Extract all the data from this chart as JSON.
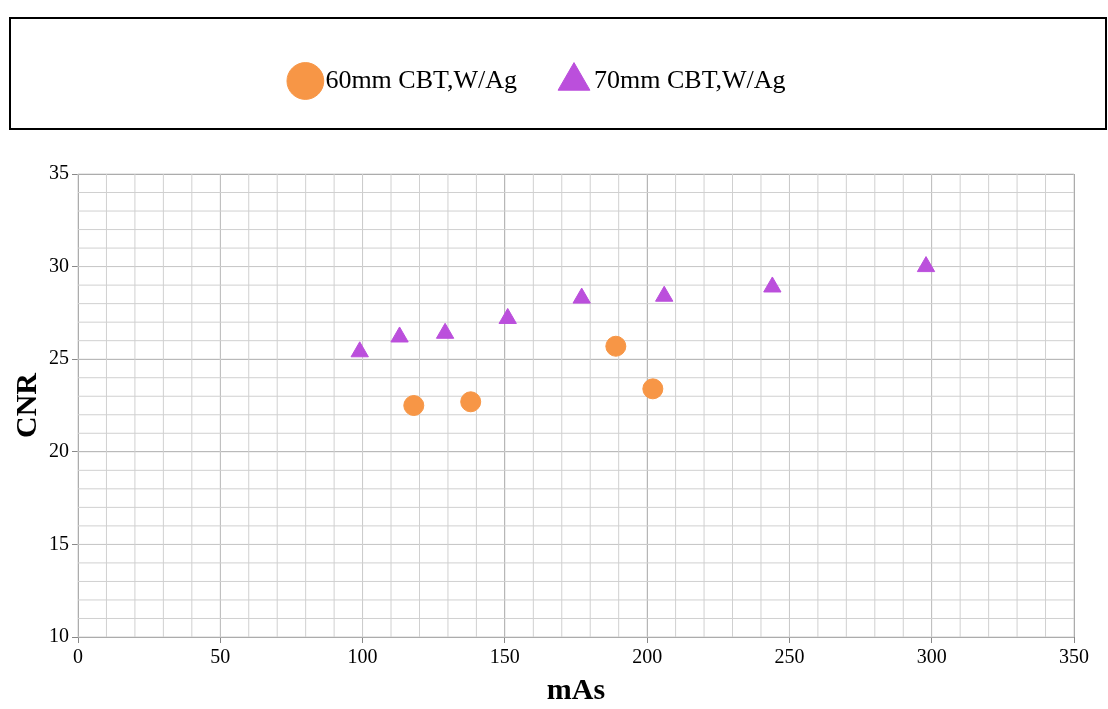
{
  "chart_data": {
    "type": "scatter",
    "xlabel": "mAs",
    "ylabel": "CNR",
    "xlim": [
      0,
      350
    ],
    "xticks": [
      0,
      50,
      100,
      150,
      200,
      250,
      300,
      350
    ],
    "ylim": [
      10,
      35
    ],
    "yticks": [
      10,
      15,
      20,
      25,
      30,
      35
    ],
    "grid": true,
    "legend": "top",
    "series": [
      {
        "name": "60mm CBT,W/Ag",
        "color": "#f79646",
        "marker": "circle",
        "x": [
          118,
          138,
          189,
          202
        ],
        "values": [
          22.5,
          22.7,
          25.7,
          23.4
        ]
      },
      {
        "name": "70mm CBT,W/Ag",
        "color": "#bb4fdc",
        "marker": "triangle",
        "x": [
          99,
          113,
          129,
          151,
          177,
          206,
          244,
          298
        ],
        "values": [
          25.4,
          26.2,
          26.4,
          27.2,
          28.3,
          28.4,
          28.9,
          30.0
        ]
      }
    ]
  }
}
